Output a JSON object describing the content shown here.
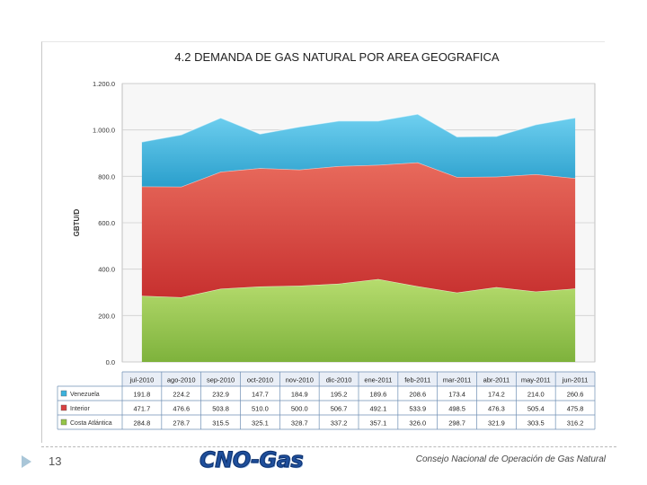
{
  "footer": {
    "slide_number": "13",
    "logo_text": "CNO-Gas",
    "organization": "Consejo Nacional de Operación de Gas Natural"
  },
  "colors": {
    "venezuela": "#3cb2dd",
    "interior": "#d94040",
    "costa": "#94c548",
    "table_header": "#e9eef6",
    "table_border": "#6f8fb4"
  },
  "chart_data": {
    "type": "area",
    "stacked": true,
    "title": "4.2  DEMANDA DE GAS NATURAL POR AREA GEOGRAFICA",
    "ylabel": "GBTU/D",
    "xlabel": "",
    "ylim": [
      0,
      1200
    ],
    "yticks": [
      "0.0",
      "200.0",
      "400.0",
      "600.0",
      "800.0",
      "1.000.0",
      "1.200.0"
    ],
    "grid": true,
    "legend": "table",
    "categories": [
      "jul-2010",
      "ago-2010",
      "sep-2010",
      "oct-2010",
      "nov-2010",
      "dic-2010",
      "ene-2011",
      "feb-2011",
      "mar-2011",
      "abr-2011",
      "may-2011",
      "jun-2011"
    ],
    "series": [
      {
        "name": "Costa Atlántica",
        "color": "#94c548",
        "values": [
          284.8,
          278.7,
          315.5,
          325.1,
          328.7,
          337.2,
          357.1,
          326.0,
          298.7,
          321.9,
          303.5,
          316.2
        ],
        "labels": [
          "284.8",
          "278.7",
          "315.5",
          "325.1",
          "328.7",
          "337.2",
          "357.1",
          "326.0",
          "298.7",
          "321.9",
          "303.5",
          "316.2"
        ]
      },
      {
        "name": "Interior",
        "color": "#d94040",
        "values": [
          471.7,
          476.6,
          503.8,
          510.0,
          500.0,
          506.7,
          492.1,
          533.9,
          498.5,
          476.3,
          505.4,
          475.8
        ],
        "labels": [
          "471.7",
          "476.6",
          "503.8",
          "510.0",
          "500.0",
          "506.7",
          "492.1",
          "533.9",
          "498.5",
          "476.3",
          "505.4",
          "475.8"
        ]
      },
      {
        "name": "Venezuela",
        "color": "#3cb2dd",
        "values": [
          191.8,
          224.2,
          232.9,
          147.7,
          184.9,
          195.2,
          189.6,
          208.6,
          173.4,
          174.2,
          214.0,
          260.6
        ],
        "labels": [
          "191.8",
          "224.2",
          "232.9",
          "147.7",
          "184.9",
          "195.2",
          "189.6",
          "208.6",
          "173.4",
          "174.2",
          "214.0",
          "260.6"
        ]
      }
    ],
    "table_row_order": [
      "Venezuela",
      "Interior",
      "Costa Atlántica"
    ]
  }
}
